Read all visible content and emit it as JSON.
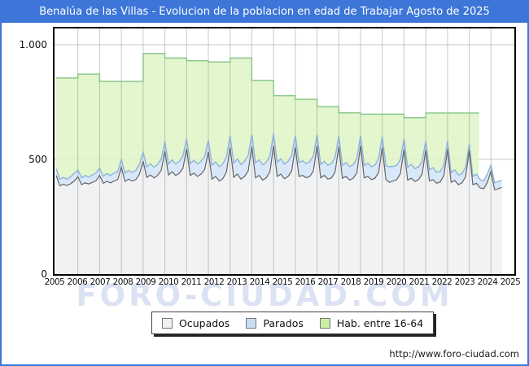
{
  "header": {
    "title": "Benalúa de las Villas - Evolucion de la poblacion en edad de Trabajar Agosto de 2025"
  },
  "watermark": "FORO-CIUDAD.COM",
  "footer": {
    "url": "http://www.foro-ciudad.com"
  },
  "chart_data": {
    "type": "area",
    "title": "Benalúa de las Villas - Evolucion de la poblacion en edad de Trabajar Agosto de 2025",
    "stacking": "Ocupados at bottom, Parados stacked above; Hab. entre 16-64 is total working-age population drawn as yearly steps",
    "ylim": [
      0,
      1070
    ],
    "y_ticks": [
      "0",
      "500",
      "1.000"
    ],
    "y_tick_values": [
      0,
      500,
      1000
    ],
    "x_years": [
      2005,
      2006,
      2007,
      2008,
      2009,
      2010,
      2011,
      2012,
      2013,
      2014,
      2015,
      2016,
      2017,
      2018,
      2019,
      2020,
      2021,
      2022,
      2023,
      2024,
      2025
    ],
    "samples_per_year": 6,
    "grid": "vertical line per year, horizontal at 500 and 1000",
    "legend_position": "bottom-center",
    "legend": [
      "Ocupados",
      "Parados",
      "Hab. entre 16-64"
    ],
    "series": [
      {
        "name": "Ocupados",
        "color_fill": "#f2f2f2",
        "color_line": "#646464",
        "values": [
          430,
          385,
          392,
          386,
          394,
          406,
          424,
          390,
          398,
          393,
          400,
          407,
          430,
          396,
          404,
          398,
          406,
          412,
          466,
          404,
          414,
          406,
          412,
          436,
          492,
          422,
          432,
          420,
          430,
          452,
          536,
          432,
          446,
          430,
          440,
          462,
          546,
          430,
          440,
          426,
          436,
          456,
          534,
          414,
          426,
          406,
          416,
          446,
          552,
          422,
          436,
          414,
          426,
          450,
          556,
          420,
          430,
          410,
          420,
          446,
          560,
          426,
          436,
          416,
          426,
          450,
          554,
          426,
          430,
          420,
          426,
          450,
          560,
          420,
          430,
          414,
          420,
          446,
          556,
          418,
          426,
          410,
          418,
          442,
          560,
          420,
          426,
          412,
          418,
          444,
          552,
          412,
          400,
          406,
          412,
          438,
          544,
          410,
          418,
          404,
          412,
          436,
          540,
          406,
          412,
          396,
          402,
          430,
          544,
          400,
          408,
          390,
          398,
          424,
          538,
          390,
          396,
          376,
          372,
          400,
          448,
          368,
          372,
          378
        ]
      },
      {
        "name": "Parados",
        "color_fill": "#d9e8f8",
        "color_line": "#8fb3da",
        "stacked_on": "Ocupados",
        "values": [
          30,
          28,
          30,
          28,
          31,
          33,
          30,
          30,
          32,
          30,
          32,
          34,
          32,
          31,
          34,
          32,
          35,
          36,
          34,
          36,
          38,
          37,
          40,
          44,
          40,
          45,
          48,
          46,
          48,
          50,
          42,
          48,
          52,
          50,
          52,
          54,
          44,
          52,
          56,
          54,
          56,
          58,
          50,
          60,
          63,
          62,
          64,
          65,
          52,
          62,
          66,
          64,
          66,
          68,
          54,
          65,
          68,
          66,
          68,
          70,
          52,
          62,
          66,
          64,
          66,
          68,
          50,
          60,
          64,
          62,
          64,
          66,
          48,
          58,
          62,
          60,
          62,
          64,
          46,
          56,
          60,
          58,
          60,
          62,
          44,
          54,
          58,
          56,
          58,
          60,
          48,
          60,
          68,
          64,
          62,
          62,
          46,
          56,
          60,
          56,
          55,
          55,
          40,
          48,
          52,
          48,
          46,
          46,
          36,
          42,
          46,
          42,
          40,
          42,
          30,
          36,
          40,
          36,
          34,
          36,
          28,
          30,
          32,
          30
        ]
      },
      {
        "name": "Hab. entre 16-64",
        "type": "step-per-year",
        "color_fill": "#def5c4",
        "color_line": "#8cc98c",
        "end_x": 2024.45,
        "values_by_year": [
          855,
          872,
          840,
          840,
          962,
          942,
          930,
          925,
          942,
          845,
          778,
          762,
          730,
          703,
          697,
          697,
          682,
          702,
          702,
          702
        ]
      }
    ]
  }
}
